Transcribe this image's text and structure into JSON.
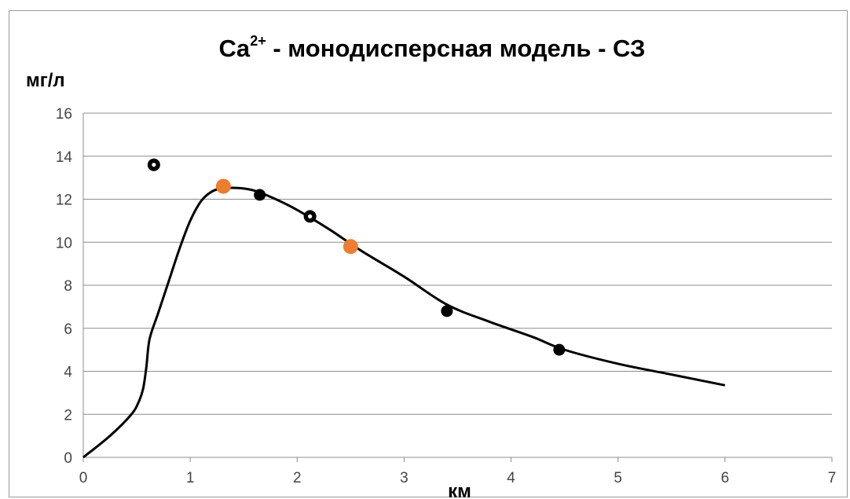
{
  "chart_data": {
    "type": "scatter",
    "title": {
      "base": "Ca",
      "superscript": "2+",
      "rest": " - монодисперсная модель - СЗ"
    },
    "xlabel": "км",
    "ylabel": "мг/л",
    "xlim": [
      0,
      7
    ],
    "ylim": [
      0,
      16
    ],
    "x_ticks": [
      "0",
      "1",
      "2",
      "3",
      "4",
      "5",
      "6",
      "7"
    ],
    "y_ticks": [
      "0",
      "2",
      "4",
      "6",
      "8",
      "10",
      "12",
      "14",
      "16"
    ],
    "grid": "horizontal",
    "legend": "none",
    "series": [
      {
        "kind": "line",
        "color": "#000000",
        "points": [
          [
            0,
            0
          ],
          [
            0.25,
            1.0
          ],
          [
            0.45,
            2.0
          ],
          [
            0.52,
            2.6
          ],
          [
            0.56,
            3.2
          ],
          [
            0.59,
            4.2
          ],
          [
            0.62,
            5.5
          ],
          [
            0.7,
            6.7
          ],
          [
            0.8,
            8.2
          ],
          [
            0.9,
            9.7
          ],
          [
            1.0,
            11.0
          ],
          [
            1.1,
            11.9
          ],
          [
            1.2,
            12.35
          ],
          [
            1.3,
            12.5
          ],
          [
            1.45,
            12.52
          ],
          [
            1.6,
            12.4
          ],
          [
            1.8,
            12.0
          ],
          [
            2.0,
            11.5
          ],
          [
            2.3,
            10.6
          ],
          [
            2.6,
            9.6
          ],
          [
            3.0,
            8.4
          ],
          [
            3.4,
            7.1
          ],
          [
            3.8,
            6.3
          ],
          [
            4.2,
            5.6
          ],
          [
            4.5,
            5.0
          ],
          [
            5.0,
            4.35
          ],
          [
            5.5,
            3.85
          ],
          [
            6.0,
            3.35
          ]
        ]
      },
      {
        "kind": "points",
        "marker": "filled",
        "color": "#000000",
        "points": [
          [
            1.65,
            12.2
          ],
          [
            3.4,
            6.8
          ],
          [
            4.45,
            5.0
          ]
        ]
      },
      {
        "kind": "points",
        "marker": "ring",
        "color": "#000000",
        "points": [
          [
            0.66,
            13.6
          ],
          [
            2.12,
            11.2
          ]
        ]
      },
      {
        "kind": "points",
        "marker": "filled",
        "color": "#ED7D31",
        "points": [
          [
            1.31,
            12.6
          ],
          [
            2.5,
            9.8
          ]
        ]
      }
    ]
  }
}
